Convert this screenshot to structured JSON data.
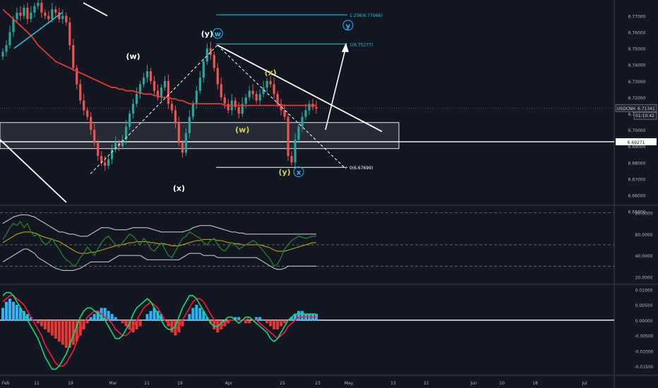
{
  "chart_data": {
    "type": "line",
    "symbol": "USDCNH",
    "last_price": "6.71341",
    "countdown": "01:10:42",
    "level_label": "6.69271",
    "price_axis": {
      "min": 6.655,
      "max": 6.778,
      "ticks": [
        "6.77000",
        "6.76000",
        "6.75000",
        "6.74000",
        "6.73000",
        "6.72000",
        "6.71000",
        "6.70000",
        "6.69000",
        "6.68000",
        "6.67000",
        "6.66000",
        "6.65000"
      ]
    },
    "rsi_axis": {
      "min": 15,
      "max": 85,
      "ticks": [
        "60.0000",
        "40.0000",
        "20.0000"
      ],
      "top_label": "80.0000"
    },
    "macd_axis": {
      "min": -0.0175,
      "max": 0.011,
      "ticks": [
        "0.01000",
        "0.00500",
        "0.00000",
        "-0.00500",
        "-0.01000",
        "-0.01500"
      ]
    },
    "time_axis": [
      "Feb",
      "11",
      "19",
      "Mar",
      "11",
      "19",
      "Apr",
      "15",
      "23",
      "May",
      "13",
      "21",
      "Jun",
      "10",
      "18",
      "Jul"
    ],
    "fib_levels": [
      {
        "label": "1.236(6.77066)",
        "value": 6.77066
      },
      {
        "label": "1(6.75277)",
        "value": 6.75277
      },
      {
        "label": "0(6.67699)",
        "value": 6.67699
      }
    ],
    "wave_labels": [
      {
        "text": "(w)",
        "color": "#ffffff",
        "price": 6.7435,
        "bar": 37
      },
      {
        "text": "(x)",
        "color": "#ffffff",
        "price": 6.6625,
        "bar": 50
      },
      {
        "text": "(y)",
        "color": "#ffffff",
        "price": 6.7575,
        "bar": 58
      },
      {
        "text": "w",
        "color": "#29b6f6",
        "price": 6.7575,
        "bar": 61,
        "circled": true
      },
      {
        "text": "(x)",
        "color": "#d4d45a",
        "price": 6.7335,
        "bar": 76
      },
      {
        "text": "(w)",
        "color": "#d4d45a",
        "price": 6.6985,
        "bar": 68
      },
      {
        "text": "(y)",
        "color": "#d4d45a",
        "price": 6.6725,
        "bar": 80
      },
      {
        "text": "x",
        "color": "#29b6f6",
        "price": 6.6725,
        "bar": 84,
        "circled": true
      },
      {
        "text": "y",
        "color": "#29b6f6",
        "price": 6.7625,
        "bar": 98,
        "circled": true
      }
    ],
    "ohlc_close": [
      6.748,
      6.752,
      6.76,
      6.768,
      6.772,
      6.77,
      6.775,
      6.768,
      6.772,
      6.776,
      6.778,
      6.772,
      6.77,
      6.768,
      6.774,
      6.772,
      6.768,
      6.77,
      6.766,
      6.752,
      6.738,
      6.728,
      6.718,
      6.712,
      6.708,
      6.7,
      6.692,
      6.684,
      6.68,
      6.678,
      6.682,
      6.688,
      6.692,
      6.69,
      6.694,
      6.702,
      6.71,
      6.716,
      6.722,
      6.728,
      6.732,
      6.736,
      6.73,
      6.724,
      6.72,
      6.726,
      6.73,
      6.716,
      6.712,
      6.704,
      6.692,
      6.686,
      6.698,
      6.708,
      6.716,
      6.724,
      6.732,
      6.742,
      6.75,
      6.746,
      6.738,
      6.728,
      6.72,
      6.716,
      6.712,
      6.718,
      6.714,
      6.71,
      6.716,
      6.72,
      6.724,
      6.722,
      6.718,
      6.722,
      6.726,
      6.73,
      6.728,
      6.722,
      6.716,
      6.712,
      6.708,
      6.684,
      6.68,
      6.694,
      6.702,
      6.708,
      6.712,
      6.716,
      6.714,
      6.713
    ],
    "ma_line": [
      6.774,
      6.772,
      6.77,
      6.768,
      6.766,
      6.764,
      6.762,
      6.76,
      6.758,
      6.755,
      6.752,
      6.75,
      6.748,
      6.746,
      6.744,
      6.742,
      6.741,
      6.74,
      6.739,
      6.738,
      6.737,
      6.736,
      6.735,
      6.734,
      6.733,
      6.732,
      6.731,
      6.73,
      6.729,
      6.728,
      6.727,
      6.726,
      6.726,
      6.725,
      6.725,
      6.724,
      6.724,
      6.724,
      6.723,
      6.723,
      6.722,
      6.722,
      6.722,
      6.721,
      6.721,
      6.72,
      6.72,
      6.72,
      6.719,
      6.719,
      6.718,
      6.718,
      6.717,
      6.716,
      6.716,
      6.716,
      6.716,
      6.716,
      6.716,
      6.716,
      6.716,
      6.716,
      6.716,
      6.715,
      6.715,
      6.715,
      6.715,
      6.715,
      6.715,
      6.715,
      6.715,
      6.715,
      6.715,
      6.715,
      6.715,
      6.715,
      6.715,
      6.715,
      6.715,
      6.715,
      6.715,
      6.715,
      6.715,
      6.715,
      6.715,
      6.715,
      6.715,
      6.715,
      6.715,
      6.715
    ],
    "rsi": [
      55,
      60,
      66,
      70,
      68,
      72,
      66,
      70,
      62,
      58,
      60,
      54,
      50,
      52,
      56,
      50,
      46,
      40,
      36,
      34,
      30,
      32,
      38,
      42,
      48,
      44,
      40,
      46,
      52,
      56,
      58,
      54,
      50,
      48,
      52,
      56,
      60,
      58,
      54,
      50,
      56,
      52,
      46,
      44,
      48,
      52,
      46,
      40,
      38,
      44,
      50,
      56,
      58,
      62,
      60,
      58,
      56,
      52,
      50,
      54,
      56,
      50,
      46,
      44,
      48,
      52,
      50,
      46,
      48,
      50,
      52,
      54,
      52,
      48,
      44,
      40,
      36,
      30,
      32,
      38,
      46,
      50,
      54,
      56,
      58,
      57,
      56,
      57,
      58,
      58
    ],
    "rsi_ma": [
      52,
      54,
      56,
      58,
      60,
      61,
      62,
      62,
      62,
      61,
      60,
      58,
      57,
      56,
      55,
      54,
      53,
      51,
      49,
      47,
      45,
      43,
      42,
      42,
      42,
      43,
      43,
      44,
      45,
      46,
      47,
      48,
      49,
      50,
      50,
      51,
      52,
      52,
      53,
      53,
      53,
      53,
      52,
      52,
      51,
      51,
      51,
      50,
      49,
      49,
      49,
      50,
      51,
      52,
      53,
      54,
      54,
      55,
      55,
      55,
      55,
      54,
      54,
      53,
      52,
      52,
      51,
      51,
      50,
      50,
      50,
      50,
      50,
      50,
      49,
      48,
      47,
      45,
      44,
      44,
      44,
      45,
      46,
      47,
      48,
      49,
      50,
      51,
      52,
      52
    ],
    "bb_upper": [
      70,
      72,
      74,
      76,
      77,
      78,
      78,
      78,
      77,
      76,
      74,
      72,
      70,
      68,
      66,
      64,
      62,
      62,
      61,
      60,
      60,
      59,
      58,
      58,
      58,
      60,
      62,
      64,
      66,
      66,
      66,
      65,
      64,
      64,
      64,
      64,
      65,
      66,
      66,
      66,
      66,
      66,
      65,
      64,
      63,
      62,
      62,
      62,
      62,
      62,
      62,
      62,
      63,
      64,
      66,
      67,
      68,
      68,
      68,
      68,
      67,
      66,
      65,
      64,
      63,
      62,
      62,
      61,
      61,
      60,
      60,
      60,
      60,
      60,
      60,
      60,
      60,
      60,
      60,
      60,
      60,
      60,
      60,
      60,
      60,
      60,
      60,
      60,
      60,
      60
    ],
    "bb_lower": [
      34,
      36,
      38,
      40,
      42,
      44,
      46,
      46,
      44,
      42,
      38,
      36,
      34,
      32,
      30,
      28,
      27,
      26,
      26,
      26,
      26,
      27,
      28,
      30,
      32,
      34,
      34,
      34,
      34,
      34,
      34,
      36,
      38,
      40,
      40,
      40,
      40,
      40,
      40,
      40,
      38,
      36,
      36,
      36,
      36,
      36,
      36,
      36,
      36,
      36,
      36,
      38,
      40,
      42,
      42,
      42,
      42,
      40,
      40,
      40,
      40,
      38,
      38,
      38,
      38,
      38,
      38,
      38,
      38,
      38,
      38,
      38,
      38,
      36,
      34,
      32,
      30,
      28,
      27,
      27,
      28,
      30,
      30,
      30,
      30,
      30,
      30,
      30,
      30,
      30
    ],
    "macd_hist": [
      0.004,
      0.006,
      0.007,
      0.006,
      0.005,
      0.004,
      0.003,
      0.002,
      0.001,
      0.0,
      -0.001,
      -0.002,
      -0.003,
      -0.004,
      -0.005,
      -0.006,
      -0.007,
      -0.008,
      -0.009,
      -0.009,
      -0.008,
      -0.007,
      -0.005,
      -0.003,
      -0.001,
      0.001,
      0.002,
      0.003,
      0.004,
      0.004,
      0.003,
      0.002,
      0.001,
      0.0,
      -0.001,
      -0.002,
      -0.003,
      -0.004,
      -0.003,
      -0.002,
      0.0,
      0.002,
      0.003,
      0.004,
      0.003,
      0.002,
      0.0,
      -0.002,
      -0.004,
      -0.005,
      -0.004,
      -0.002,
      0.0,
      0.002,
      0.004,
      0.005,
      0.004,
      0.003,
      0.001,
      -0.001,
      -0.003,
      -0.004,
      -0.003,
      -0.002,
      -0.001,
      0.0,
      0.001,
      0.001,
      0.0,
      -0.001,
      -0.001,
      0.0,
      0.001,
      0.001,
      0.0,
      -0.001,
      -0.002,
      -0.003,
      -0.003,
      -0.002,
      -0.001,
      0.0,
      0.001,
      0.002,
      0.003,
      0.003,
      0.002,
      0.002,
      0.002,
      0.002
    ],
    "macd_line": [
      0.008,
      0.009,
      0.009,
      0.008,
      0.006,
      0.004,
      0.002,
      0.0,
      -0.002,
      -0.004,
      -0.006,
      -0.009,
      -0.012,
      -0.014,
      -0.016,
      -0.016,
      -0.015,
      -0.013,
      -0.011,
      -0.008,
      -0.005,
      -0.002,
      0.001,
      0.003,
      0.004,
      0.004,
      0.003,
      0.002,
      0.001,
      0.0,
      -0.002,
      -0.004,
      -0.006,
      -0.006,
      -0.005,
      -0.003,
      -0.001,
      0.002,
      0.004,
      0.005,
      0.006,
      0.007,
      0.006,
      0.004,
      0.002,
      0.0,
      -0.002,
      -0.003,
      -0.003,
      -0.002,
      0.001,
      0.004,
      0.006,
      0.008,
      0.008,
      0.007,
      0.005,
      0.003,
      0.001,
      -0.001,
      -0.002,
      -0.002,
      -0.001,
      0.0,
      0.001,
      0.001,
      0.0,
      -0.001,
      0.0,
      0.001,
      0.001,
      0.0,
      -0.001,
      -0.002,
      -0.003,
      -0.004,
      -0.006,
      -0.007,
      -0.006,
      -0.004,
      -0.002,
      0.0,
      0.001,
      0.002,
      0.002,
      0.002,
      0.002,
      0.002,
      0.002,
      0.002
    ],
    "macd_signal": [
      0.006,
      0.007,
      0.008,
      0.008,
      0.007,
      0.006,
      0.005,
      0.003,
      0.001,
      -0.001,
      -0.003,
      -0.005,
      -0.008,
      -0.01,
      -0.012,
      -0.014,
      -0.015,
      -0.015,
      -0.014,
      -0.012,
      -0.01,
      -0.007,
      -0.004,
      -0.001,
      0.001,
      0.002,
      0.003,
      0.003,
      0.002,
      0.001,
      0.0,
      -0.001,
      -0.003,
      -0.004,
      -0.005,
      -0.005,
      -0.004,
      -0.002,
      0.0,
      0.002,
      0.004,
      0.005,
      0.006,
      0.005,
      0.004,
      0.002,
      0.0,
      -0.001,
      -0.002,
      -0.003,
      -0.002,
      0.0,
      0.002,
      0.004,
      0.006,
      0.007,
      0.007,
      0.006,
      0.004,
      0.002,
      0.0,
      -0.001,
      -0.002,
      -0.001,
      0.0,
      0.0,
      0.0,
      0.0,
      0.0,
      0.0,
      0.001,
      0.0,
      0.0,
      -0.001,
      -0.002,
      -0.003,
      -0.004,
      -0.005,
      -0.006,
      -0.005,
      -0.004,
      -0.002,
      -0.001,
      0.0,
      0.001,
      0.001,
      0.001,
      0.001,
      0.001,
      0.001
    ]
  },
  "colors": {
    "background": "#131722",
    "up": "#26a69a",
    "down": "#ef5350",
    "ma": "#e53935",
    "fib": "#26c6da",
    "white": "#ffffff",
    "rsi_line": "#2e7d32",
    "rsi_ma": "#c8b400",
    "macd_line": "#00e676",
    "macd_signal": "#ff1744",
    "hist_up": "#29b6f6",
    "hist_down": "#e53935"
  }
}
